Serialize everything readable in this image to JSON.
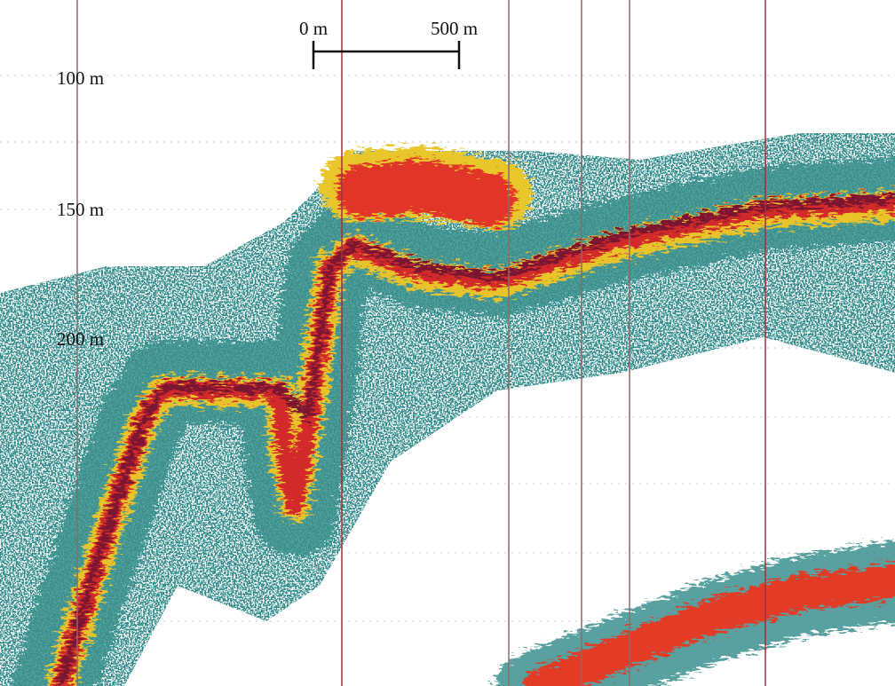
{
  "scale_bar": {
    "start_label": "0 m",
    "end_label": "500 m"
  },
  "depth_labels": [
    "100 m",
    "150 m",
    "200 m"
  ]
}
